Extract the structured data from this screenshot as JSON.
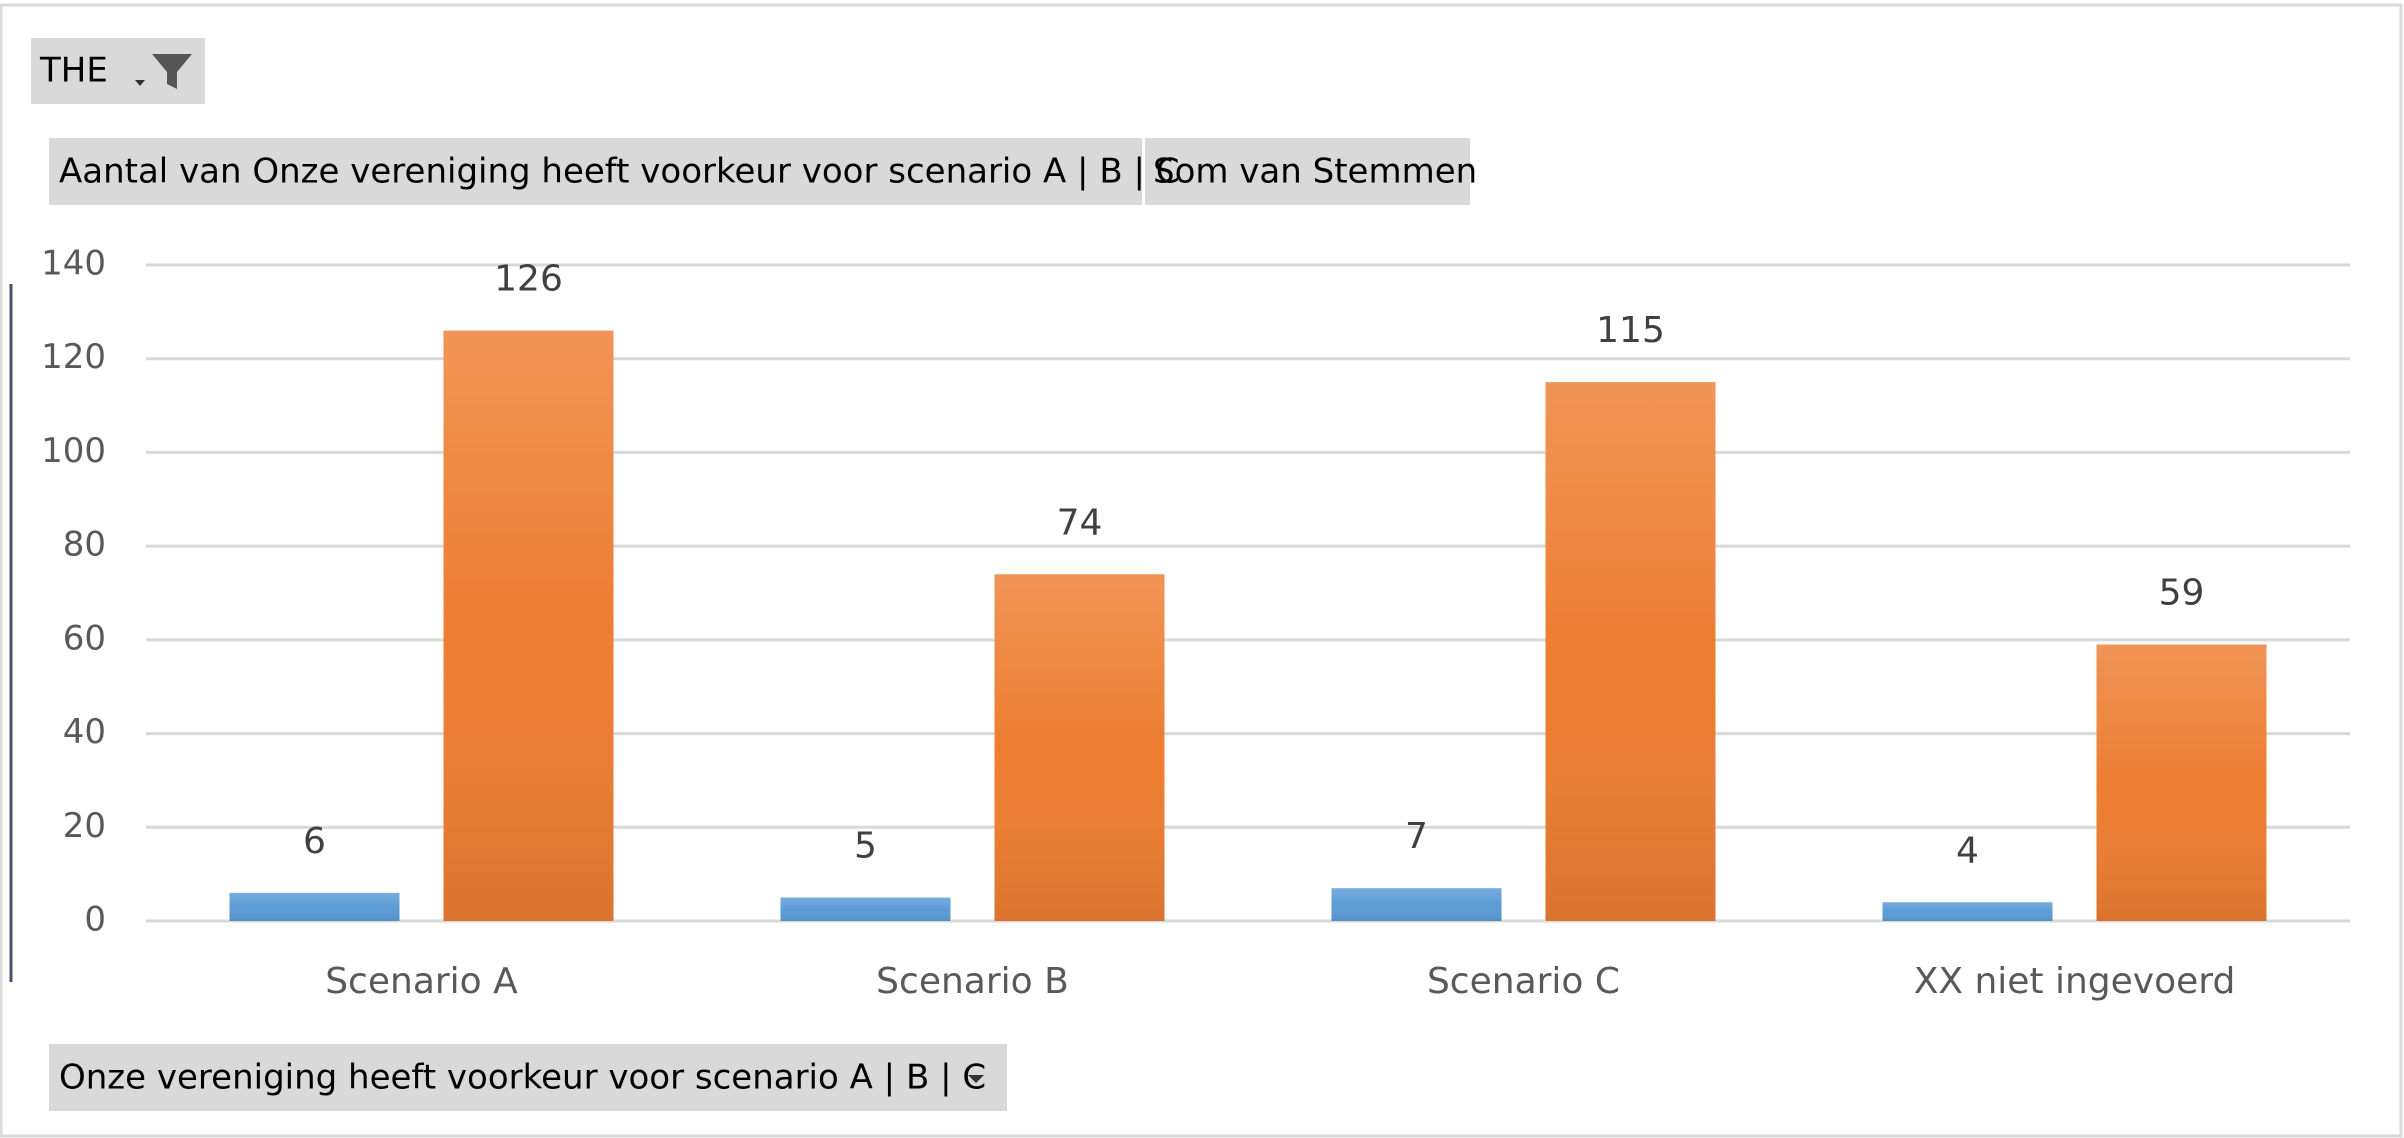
{
  "chart_data": {
    "type": "bar",
    "filter_field": "THE",
    "axis_field": "Onze vereniging heeft voorkeur voor scenario A | B | C",
    "categories": [
      "Scenario A",
      "Scenario B",
      "Scenario C",
      "XX niet ingevoerd"
    ],
    "series": [
      {
        "name": "Aantal van Onze vereniging heeft voorkeur voor scenario A | B | C",
        "color": "#5b9bd5",
        "values": [
          6,
          5,
          7,
          4
        ]
      },
      {
        "name": "Som van Stemmen",
        "color": "#ed7d31",
        "values": [
          126,
          74,
          115,
          59
        ]
      }
    ],
    "ylim": [
      0,
      140
    ],
    "yticks": [
      0,
      20,
      40,
      60,
      80,
      100,
      120,
      140
    ],
    "grid": true,
    "data_labels": true
  }
}
